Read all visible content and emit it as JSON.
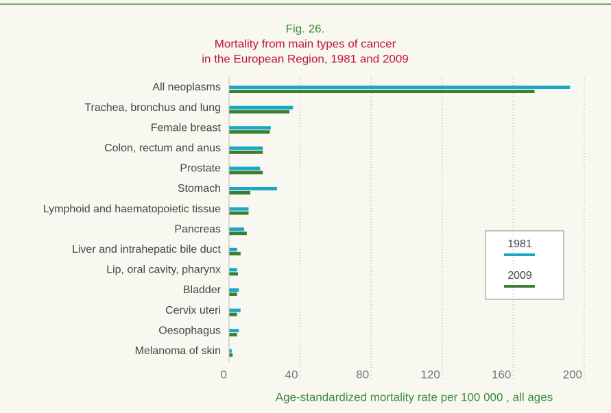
{
  "chart_data": {
    "type": "barh",
    "title": "Fig. 26.",
    "subtitle": [
      "Mortality from main types of cancer",
      "in the European Region, 1981 and 2009"
    ],
    "xlabel": "Age-standardized mortality rate per 100 000 , all ages",
    "categories": [
      "All neoplasms",
      "Trachea, bronchus and lung",
      "Female breast",
      "Colon, rectum and anus",
      "Prostate",
      "Stomach",
      "Lymphoid and haematopoietic tissue",
      "Pancreas",
      "Liver and intrahepatic bile duct",
      "Lip, oral cavity, pharynx",
      "Bladder",
      "Cervix uteri",
      "Oesophagus",
      "Melanoma of skin"
    ],
    "series": [
      {
        "name": "1981",
        "color": "#1ba7c6",
        "values": [
          192,
          36,
          23.5,
          19,
          17.5,
          27,
          11,
          8.5,
          4.6,
          4.6,
          5.5,
          6.5,
          5.5,
          1.5
        ]
      },
      {
        "name": "2009",
        "color": "#3a7f35",
        "values": [
          172,
          34,
          23,
          19,
          19,
          12,
          11,
          10,
          6.5,
          5,
          4.5,
          4.5,
          4.5,
          2
        ]
      }
    ],
    "xlim": [
      0,
      200
    ],
    "xticks": [
      0,
      40,
      80,
      120,
      160,
      200
    ],
    "grid": true
  }
}
